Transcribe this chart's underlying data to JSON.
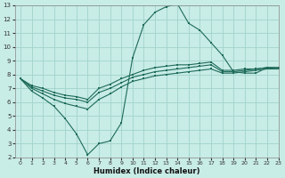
{
  "title": "",
  "xlabel": "Humidex (Indice chaleur)",
  "ylabel": "",
  "bg_color": "#c8ece6",
  "line_color": "#1e6b5a",
  "grid_color": "#a0d4cc",
  "xlim": [
    -0.5,
    23
  ],
  "ylim": [
    2,
    13
  ],
  "xticks": [
    0,
    1,
    2,
    3,
    4,
    5,
    6,
    7,
    8,
    9,
    10,
    11,
    12,
    13,
    14,
    15,
    16,
    17,
    18,
    19,
    20,
    21,
    22,
    23
  ],
  "yticks": [
    2,
    3,
    4,
    5,
    6,
    7,
    8,
    9,
    10,
    11,
    12,
    13
  ],
  "line1_x": [
    0,
    1,
    2,
    3,
    4,
    5,
    6,
    7,
    8,
    9,
    10,
    11,
    12,
    13,
    14,
    15,
    16,
    17,
    18,
    19,
    20,
    21,
    22,
    23
  ],
  "line1_y": [
    7.7,
    7.0,
    6.6,
    6.2,
    5.9,
    5.7,
    5.5,
    6.2,
    6.6,
    7.1,
    7.5,
    7.7,
    7.9,
    8.0,
    8.1,
    8.2,
    8.3,
    8.4,
    8.1,
    8.1,
    8.2,
    8.3,
    8.4,
    8.4
  ],
  "line2_x": [
    0,
    1,
    2,
    3,
    4,
    5,
    6,
    7,
    8,
    9,
    10,
    11,
    12,
    13,
    14,
    15,
    16,
    17,
    18,
    19,
    20,
    21,
    22,
    23
  ],
  "line2_y": [
    7.7,
    7.1,
    6.8,
    6.5,
    6.3,
    6.2,
    6.0,
    6.7,
    7.0,
    7.4,
    7.8,
    8.0,
    8.2,
    8.3,
    8.4,
    8.5,
    8.6,
    8.7,
    8.2,
    8.2,
    8.3,
    8.4,
    8.5,
    8.5
  ],
  "line3_x": [
    0,
    1,
    2,
    3,
    4,
    5,
    6,
    7,
    8,
    9,
    10,
    11,
    12,
    13,
    14,
    15,
    16,
    17,
    18,
    19,
    20,
    21,
    22,
    23
  ],
  "line3_y": [
    7.7,
    7.2,
    7.0,
    6.7,
    6.5,
    6.4,
    6.2,
    7.0,
    7.3,
    7.7,
    8.0,
    8.3,
    8.5,
    8.6,
    8.7,
    8.7,
    8.8,
    8.9,
    8.3,
    8.3,
    8.4,
    8.4,
    8.5,
    8.5
  ],
  "line4_x": [
    0,
    1,
    2,
    3,
    4,
    5,
    6,
    7,
    8,
    9,
    10,
    11,
    12,
    13,
    14,
    15,
    16,
    17,
    18,
    19,
    20,
    21,
    22,
    23
  ],
  "line4_y": [
    7.7,
    6.8,
    6.3,
    5.7,
    4.8,
    3.7,
    2.2,
    3.0,
    3.2,
    4.5,
    9.2,
    11.6,
    12.5,
    12.9,
    13.1,
    11.7,
    11.2,
    10.3,
    9.4,
    8.2,
    8.1,
    8.1,
    8.5,
    8.4
  ]
}
